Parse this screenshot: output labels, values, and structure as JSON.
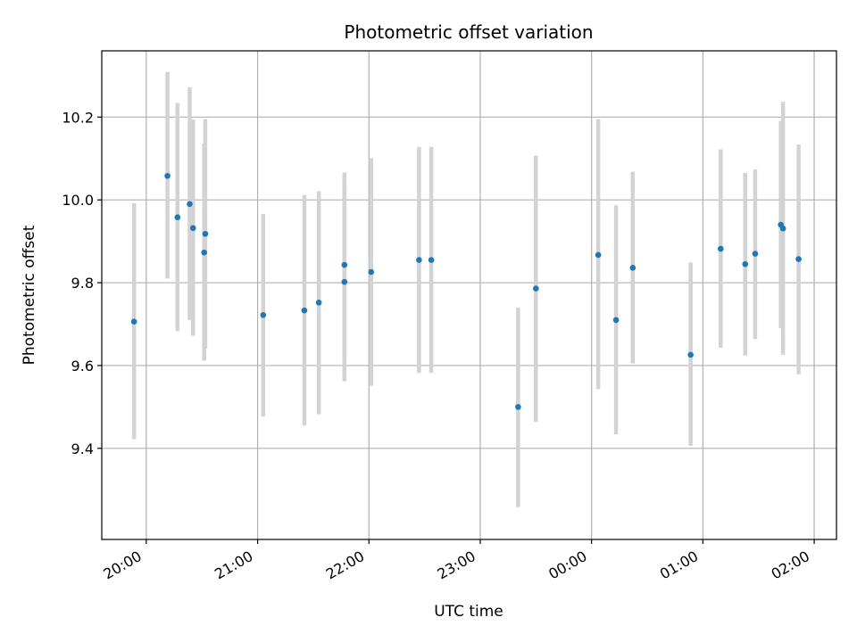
{
  "chart_data": {
    "type": "scatter",
    "title": "Photometric offset variation",
    "xlabel": "UTC time",
    "ylabel": "Photometric offset",
    "grid": true,
    "x_unit": "hours since 00:00 UTC (negative = previous day)",
    "xlim": [
      -4.4,
      2.2
    ],
    "ylim": [
      9.18,
      10.36
    ],
    "x_ticks": [
      {
        "value": -4,
        "label": "20:00"
      },
      {
        "value": -3,
        "label": "21:00"
      },
      {
        "value": -2,
        "label": "22:00"
      },
      {
        "value": -1,
        "label": "23:00"
      },
      {
        "value": 0,
        "label": "00:00"
      },
      {
        "value": 1,
        "label": "01:00"
      },
      {
        "value": 2,
        "label": "02:00"
      }
    ],
    "y_ticks": [
      {
        "value": 9.4,
        "label": "9.4"
      },
      {
        "value": 9.6,
        "label": "9.6"
      },
      {
        "value": 9.8,
        "label": "9.8"
      },
      {
        "value": 10.0,
        "label": "10.0"
      },
      {
        "value": 10.2,
        "label": "10.2"
      }
    ],
    "marker_color": "#1f77b4",
    "errorbar_color": "#d3d3d3",
    "series": [
      {
        "points": [
          {
            "x": -4.11,
            "y": 9.706,
            "lo": 9.422,
            "hi": 9.992
          },
          {
            "x": -3.81,
            "y": 10.058,
            "lo": 9.81,
            "hi": 10.309
          },
          {
            "x": -3.72,
            "y": 9.958,
            "lo": 9.683,
            "hi": 10.234
          },
          {
            "x": -3.61,
            "y": 9.99,
            "lo": 9.71,
            "hi": 10.272
          },
          {
            "x": -3.58,
            "y": 9.932,
            "lo": 9.672,
            "hi": 10.194
          },
          {
            "x": -3.48,
            "y": 9.873,
            "lo": 9.612,
            "hi": 10.136
          },
          {
            "x": -3.47,
            "y": 9.918,
            "lo": 9.641,
            "hi": 10.195
          },
          {
            "x": -2.95,
            "y": 9.722,
            "lo": 9.477,
            "hi": 9.966
          },
          {
            "x": -2.58,
            "y": 9.733,
            "lo": 9.455,
            "hi": 10.012
          },
          {
            "x": -2.45,
            "y": 9.752,
            "lo": 9.482,
            "hi": 10.021
          },
          {
            "x": -2.22,
            "y": 9.843,
            "lo": 9.62,
            "hi": 10.066
          },
          {
            "x": -2.22,
            "y": 9.802,
            "lo": 9.562,
            "hi": 10.044
          },
          {
            "x": -1.98,
            "y": 9.826,
            "lo": 9.551,
            "hi": 10.101
          },
          {
            "x": -1.55,
            "y": 9.855,
            "lo": 9.582,
            "hi": 10.128
          },
          {
            "x": -1.44,
            "y": 9.855,
            "lo": 9.582,
            "hi": 10.128
          },
          {
            "x": -0.66,
            "y": 9.5,
            "lo": 9.258,
            "hi": 9.74
          },
          {
            "x": -0.5,
            "y": 9.786,
            "lo": 9.464,
            "hi": 10.107
          },
          {
            "x": 0.06,
            "y": 9.867,
            "lo": 9.543,
            "hi": 10.195
          },
          {
            "x": 0.22,
            "y": 9.71,
            "lo": 9.434,
            "hi": 9.987
          },
          {
            "x": 0.37,
            "y": 9.836,
            "lo": 9.605,
            "hi": 10.068
          },
          {
            "x": 0.89,
            "y": 9.626,
            "lo": 9.406,
            "hi": 9.849
          },
          {
            "x": 1.16,
            "y": 9.882,
            "lo": 9.643,
            "hi": 10.122
          },
          {
            "x": 1.38,
            "y": 9.845,
            "lo": 9.624,
            "hi": 10.065
          },
          {
            "x": 1.47,
            "y": 9.87,
            "lo": 9.664,
            "hi": 10.074
          },
          {
            "x": 1.7,
            "y": 9.94,
            "lo": 9.69,
            "hi": 10.191
          },
          {
            "x": 1.72,
            "y": 9.931,
            "lo": 9.626,
            "hi": 10.237
          },
          {
            "x": 1.86,
            "y": 9.857,
            "lo": 9.579,
            "hi": 10.134
          }
        ]
      }
    ]
  }
}
